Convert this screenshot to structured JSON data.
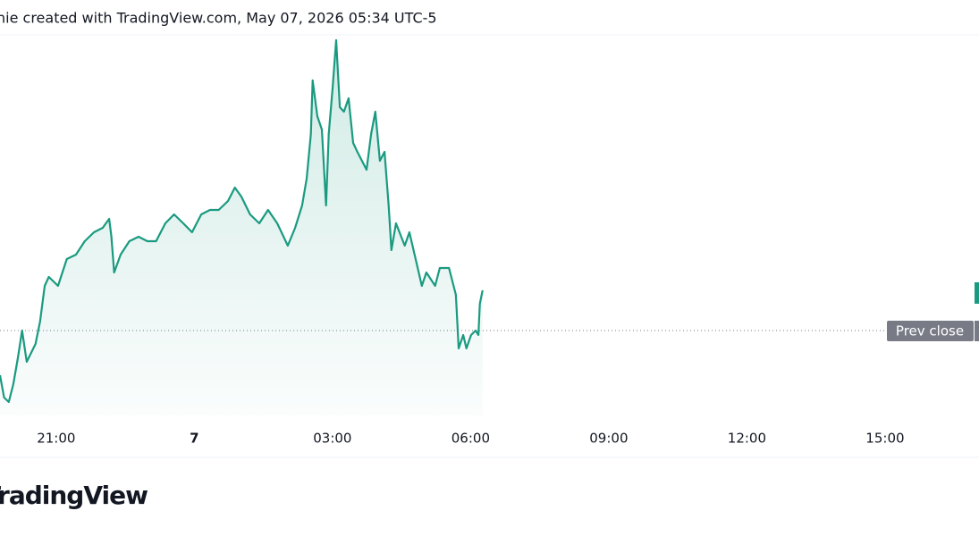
{
  "header": {
    "caption": "nie created with TradingView.com, May 07, 2026 05:34 UTC-5"
  },
  "footer": {
    "logo": "TradingView"
  },
  "chart_data": {
    "type": "line",
    "x": [
      19.78,
      19.87,
      19.97,
      20.07,
      20.17,
      20.26,
      20.36,
      20.55,
      20.65,
      20.75,
      20.84,
      21.04,
      21.23,
      21.43,
      21.62,
      21.82,
      22.01,
      22.15,
      22.2,
      22.26,
      22.4,
      22.59,
      22.79,
      22.98,
      23.17,
      23.37,
      23.56,
      23.76,
      23.95,
      24.15,
      24.34,
      24.53,
      24.73,
      24.88,
      25.02,
      25.21,
      25.41,
      25.6,
      25.8,
      26.03,
      26.19,
      26.34,
      26.44,
      26.53,
      26.57,
      26.67,
      26.77,
      26.86,
      26.92,
      27.0,
      27.08,
      27.16,
      27.25,
      27.35,
      27.45,
      27.54,
      27.74,
      27.84,
      27.93,
      28.03,
      28.13,
      28.22,
      28.28,
      28.38,
      28.57,
      28.67,
      28.85,
      28.94,
      29.04,
      29.23,
      29.33,
      29.53,
      29.68,
      29.74,
      29.84,
      29.91,
      30.01,
      30.11,
      30.17,
      30.2,
      30.26
    ],
    "series": [
      {
        "color": "#1a9a80",
        "values": [
          45,
          20,
          15,
          35,
          65,
          95,
          60,
          80,
          105,
          145,
          155,
          145,
          175,
          180,
          195,
          205,
          210,
          220,
          200,
          160,
          180,
          195,
          200,
          195,
          195,
          215,
          225,
          215,
          205,
          225,
          230,
          230,
          240,
          255,
          245,
          225,
          215,
          230,
          215,
          190,
          210,
          235,
          265,
          315,
          375,
          335,
          320,
          235,
          315,
          365,
          420,
          345,
          340,
          355,
          305,
          295,
          275,
          315,
          340,
          285,
          295,
          235,
          185,
          215,
          190,
          205,
          165,
          145,
          160,
          145,
          165,
          165,
          135,
          75,
          90,
          75,
          90,
          95,
          90,
          125,
          140
        ]
      }
    ],
    "xlim": [
      19.78,
      41.04
    ],
    "ylim": [
      0,
      425
    ],
    "xticks": [
      {
        "value": 21,
        "label": "21:00"
      },
      {
        "value": 24,
        "label": "7"
      },
      {
        "value": 27,
        "label": "03:00"
      },
      {
        "value": 30,
        "label": "06:00"
      },
      {
        "value": 33,
        "label": "09:00"
      },
      {
        "value": 36,
        "label": "12:00"
      },
      {
        "value": 39,
        "label": "15:00"
      }
    ],
    "prev_close": {
      "value": 95,
      "label": "Prev close"
    }
  }
}
